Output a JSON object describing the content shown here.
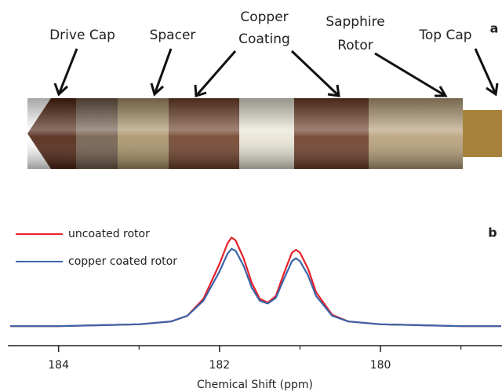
{
  "panel_a": {
    "label": "a",
    "parts": [
      {
        "lines": [
          "Drive Cap"
        ]
      },
      {
        "lines": [
          "Spacer"
        ]
      },
      {
        "lines": [
          "Copper",
          "Coating"
        ]
      },
      {
        "lines": [
          "Sapphire",
          "Rotor"
        ]
      },
      {
        "lines": [
          "Top Cap"
        ]
      }
    ]
  },
  "chart_data": {
    "type": "line",
    "panel_label": "b",
    "x_label": "Chemical Shift (ppm)",
    "x": [
      184.6,
      184.0,
      183.5,
      183.0,
      182.6,
      182.4,
      182.2,
      182.0,
      181.9,
      181.85,
      181.8,
      181.7,
      181.6,
      181.5,
      181.4,
      181.3,
      181.2,
      181.1,
      181.05,
      181.0,
      180.9,
      180.8,
      180.6,
      180.4,
      180.0,
      179.5,
      179.0,
      178.5
    ],
    "series": [
      {
        "name": "uncoated rotor",
        "color": "#e8202a",
        "values": [
          0.04,
          0.04,
          0.05,
          0.06,
          0.09,
          0.15,
          0.33,
          0.7,
          0.92,
          0.98,
          0.95,
          0.76,
          0.5,
          0.33,
          0.29,
          0.36,
          0.6,
          0.82,
          0.85,
          0.82,
          0.65,
          0.4,
          0.16,
          0.09,
          0.06,
          0.05,
          0.04,
          0.04
        ]
      },
      {
        "name": "copper coated rotor",
        "color": "#3a64a8",
        "values": [
          0.04,
          0.04,
          0.05,
          0.06,
          0.09,
          0.15,
          0.31,
          0.62,
          0.81,
          0.86,
          0.84,
          0.68,
          0.45,
          0.31,
          0.28,
          0.34,
          0.54,
          0.73,
          0.76,
          0.73,
          0.58,
          0.36,
          0.15,
          0.09,
          0.06,
          0.05,
          0.04,
          0.04
        ]
      }
    ],
    "xlim": [
      184.63,
      178.49
    ],
    "xticks": [
      184,
      182,
      180
    ],
    "minor_xticks": [
      183,
      181,
      179
    ],
    "ylim": [
      0,
      1
    ],
    "legend": "upper left"
  }
}
